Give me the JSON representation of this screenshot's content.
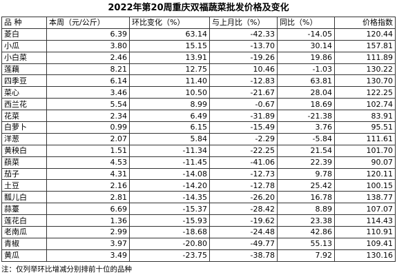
{
  "title": "2022年第20周重庆双福蔬菜批发价格及变化",
  "headers": [
    "品  种",
    "本周（元/公斤）",
    "环比变化（%）",
    "与上月比（%）",
    "同比（%）",
    "价格指数"
  ],
  "rows": [
    [
      "菱白",
      "6.39",
      "63.14",
      "-42.33",
      "-14.05",
      "120.44"
    ],
    [
      "小瓜",
      "3.80",
      "15.15",
      "-13.70",
      "30.14",
      "157.81"
    ],
    [
      "小白菜",
      "2.46",
      "13.91",
      "-19.26",
      "19.86",
      "111.89"
    ],
    [
      "莲藕",
      "8.21",
      "12.75",
      "10.46",
      "-1.03",
      "130.22"
    ],
    [
      "四季豆",
      "6.14",
      "11.40",
      "-12.83",
      "63.81",
      "130.70"
    ],
    [
      "菜心",
      "3.46",
      "10.50",
      "-21.67",
      "28.04",
      "122.25"
    ],
    [
      "西兰花",
      "5.54",
      "8.99",
      "-0.67",
      "18.69",
      "102.74"
    ],
    [
      "花菜",
      "2.34",
      "6.49",
      "-31.89",
      "-21.38",
      "83.91"
    ],
    [
      "白萝卜",
      "0.99",
      "6.15",
      "-15.49",
      "3.76",
      "95.51"
    ],
    [
      "洋葱",
      "2.07",
      "5.84",
      "-2.29",
      "-5.84",
      "111.61"
    ],
    [
      "黄秧白",
      "1.51",
      "-11.34",
      "-22.25",
      "21.54",
      "101.70"
    ],
    [
      "蕻菜",
      "4.53",
      "-11.45",
      "-41.06",
      "22.39",
      "90.07"
    ],
    [
      "茄子",
      "4.31",
      "-14.08",
      "-12.73",
      "9.78",
      "120.11"
    ],
    [
      "土豆",
      "2.16",
      "-14.20",
      "-12.78",
      "25.42",
      "100.15"
    ],
    [
      "瓢儿白",
      "2.81",
      "-14.35",
      "-26.20",
      "16.78",
      "138.77"
    ],
    [
      "蒜薹",
      "6.69",
      "-15.37",
      "-28.42",
      "8.89",
      "107.07"
    ],
    [
      "莲花白",
      "1.36",
      "-15.93",
      "-19.62",
      "23.38",
      "114.43"
    ],
    [
      "老南瓜",
      "2.99",
      "-18.68",
      "-24.48",
      "42.86",
      "110.91"
    ],
    [
      "青椒",
      "3.97",
      "-20.80",
      "-49.77",
      "55.13",
      "109.41"
    ],
    [
      "黄瓜",
      "3.49",
      "-23.75",
      "-38.78",
      "7.92",
      "130.16"
    ]
  ],
  "note": "注：仅列举环比增减分别排前十位的品种"
}
